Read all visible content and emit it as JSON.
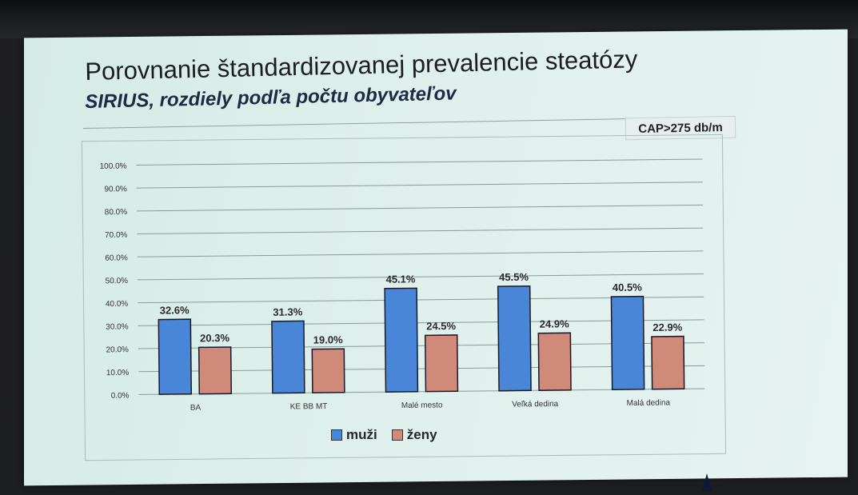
{
  "title": "Porovnanie štandardizovanej prevalencie steatózy",
  "subtitle": "SIRIUS, rozdiely podľa počtu obyvateľov",
  "note": "CAP>275 db/m",
  "colors": {
    "muzi": "#4a86d8",
    "zeny": "#cf8a7a"
  },
  "chart_data": {
    "type": "bar",
    "categories": [
      "BA",
      "KE BB MT",
      "Malé mesto",
      "Veľká dedina",
      "Malá dedina"
    ],
    "series": [
      {
        "name": "muži",
        "values": [
          32.6,
          31.3,
          45.1,
          45.5,
          40.5
        ],
        "labels": [
          "32.6%",
          "31.3%",
          "45.1%",
          "45.5%",
          "40.5%"
        ]
      },
      {
        "name": "ženy",
        "values": [
          20.3,
          19.0,
          24.5,
          24.9,
          22.9
        ],
        "labels": [
          "20.3%",
          "19.0%",
          "24.5%",
          "24.9%",
          "22.9%"
        ]
      }
    ],
    "ylim": [
      0,
      100
    ],
    "yticks": [
      "0.0%",
      "10.0%",
      "20.0%",
      "30.0%",
      "40.0%",
      "50.0%",
      "60.0%",
      "70.0%",
      "80.0%",
      "90.0%",
      "100.0%"
    ],
    "grid": true,
    "legend": "bottom"
  }
}
